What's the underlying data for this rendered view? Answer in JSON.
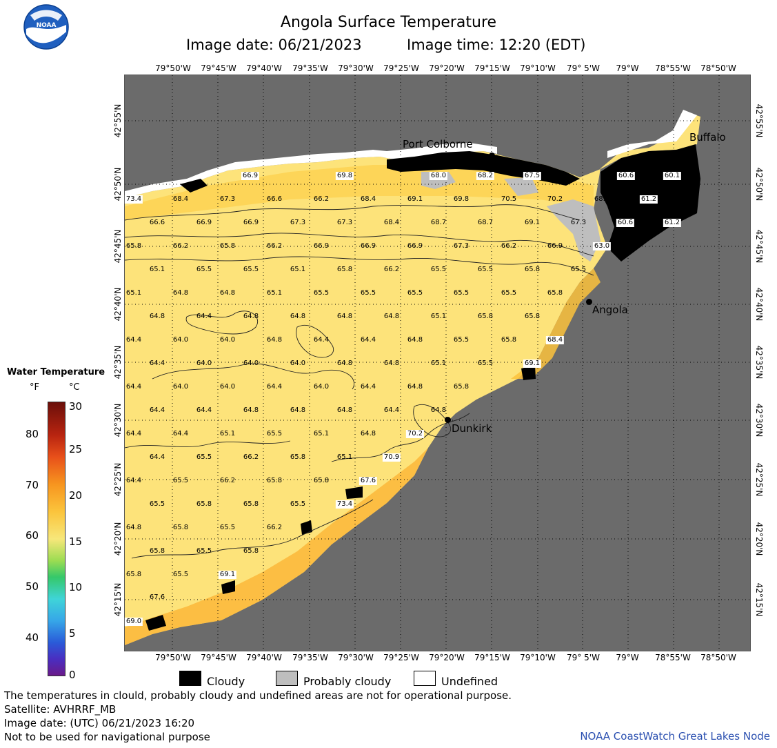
{
  "header": {
    "title": "Angola Surface Temperature",
    "image_date": "Image date: 06/21/2023",
    "image_time": "Image time: 12:20 (EDT)"
  },
  "logo": {
    "text": "NOAA"
  },
  "lon_labels": [
    "79°50'W",
    "79°45'W",
    "79°40'W",
    "79°35'W",
    "79°30'W",
    "79°25'W",
    "79°20'W",
    "79°15'W",
    "79°10'W",
    "79° 5'W",
    "79°W",
    "78°55'W",
    "78°50'W"
  ],
  "lat_labels": [
    "42°55'N",
    "42°50'N",
    "42°45'N",
    "42°40'N",
    "42°35'N",
    "42°30'N",
    "42°25'N",
    "42°20'N",
    "42°15'N"
  ],
  "cities": {
    "port_colborne": "Port Colborne",
    "buffalo": "Buffalo",
    "angola": "Angola",
    "dunkirk": "Dunkirk"
  },
  "temperatures": [
    {
      "v": "66.9",
      "b": true
    },
    {
      "v": "69.8",
      "b": true
    },
    {
      "v": "68.0",
      "b": true
    },
    {
      "v": "68.2",
      "b": true
    },
    {
      "v": "67.5",
      "b": true
    },
    {
      "v": "60.6",
      "b": true
    },
    {
      "v": "60.1",
      "b": true
    },
    {
      "v": "73.4",
      "b": true
    },
    {
      "v": "68.4",
      "b": false
    },
    {
      "v": "67.3",
      "b": false
    },
    {
      "v": "66.6",
      "b": false
    },
    {
      "v": "66.2",
      "b": false
    },
    {
      "v": "68.4",
      "b": false
    },
    {
      "v": "69.1",
      "b": false
    },
    {
      "v": "69.8",
      "b": false
    },
    {
      "v": "70.5",
      "b": false
    },
    {
      "v": "70.2",
      "b": false
    },
    {
      "v": "68.7",
      "b": false
    },
    {
      "v": "61.2",
      "b": true
    },
    {
      "v": "66.6",
      "b": false
    },
    {
      "v": "66.9",
      "b": false
    },
    {
      "v": "66.9",
      "b": false
    },
    {
      "v": "67.3",
      "b": false
    },
    {
      "v": "67.3",
      "b": false
    },
    {
      "v": "68.4",
      "b": false
    },
    {
      "v": "68.7",
      "b": false
    },
    {
      "v": "68.7",
      "b": false
    },
    {
      "v": "69.1",
      "b": false
    },
    {
      "v": "67.3",
      "b": false
    },
    {
      "v": "60.6",
      "b": true
    },
    {
      "v": "61.2",
      "b": true
    },
    {
      "v": "65.8",
      "b": false
    },
    {
      "v": "66.2",
      "b": false
    },
    {
      "v": "65.8",
      "b": false
    },
    {
      "v": "66.2",
      "b": false
    },
    {
      "v": "66.9",
      "b": false
    },
    {
      "v": "66.9",
      "b": false
    },
    {
      "v": "66.9",
      "b": false
    },
    {
      "v": "67.3",
      "b": false
    },
    {
      "v": "66.2",
      "b": false
    },
    {
      "v": "66.9",
      "b": false
    },
    {
      "v": "63.0",
      "b": true
    },
    {
      "v": "65.1",
      "b": false
    },
    {
      "v": "65.5",
      "b": false
    },
    {
      "v": "65.5",
      "b": false
    },
    {
      "v": "65.1",
      "b": false
    },
    {
      "v": "65.8",
      "b": false
    },
    {
      "v": "66.2",
      "b": false
    },
    {
      "v": "65.5",
      "b": false
    },
    {
      "v": "65.5",
      "b": false
    },
    {
      "v": "65.8",
      "b": false
    },
    {
      "v": "65.5",
      "b": false
    },
    {
      "v": "65.1",
      "b": false
    },
    {
      "v": "64.8",
      "b": false
    },
    {
      "v": "64.8",
      "b": false
    },
    {
      "v": "65.1",
      "b": false
    },
    {
      "v": "65.5",
      "b": false
    },
    {
      "v": "65.5",
      "b": false
    },
    {
      "v": "65.5",
      "b": false
    },
    {
      "v": "65.5",
      "b": false
    },
    {
      "v": "65.5",
      "b": false
    },
    {
      "v": "65.8",
      "b": false
    },
    {
      "v": "64.8",
      "b": false
    },
    {
      "v": "64.4",
      "b": false
    },
    {
      "v": "64.8",
      "b": false
    },
    {
      "v": "64.8",
      "b": false
    },
    {
      "v": "64.8",
      "b": false
    },
    {
      "v": "64.8",
      "b": false
    },
    {
      "v": "65.1",
      "b": false
    },
    {
      "v": "65.8",
      "b": false
    },
    {
      "v": "65.8",
      "b": false
    },
    {
      "v": "64.4",
      "b": false
    },
    {
      "v": "64.0",
      "b": false
    },
    {
      "v": "64.0",
      "b": false
    },
    {
      "v": "64.8",
      "b": false
    },
    {
      "v": "64.4",
      "b": false
    },
    {
      "v": "64.4",
      "b": false
    },
    {
      "v": "64.8",
      "b": false
    },
    {
      "v": "65.5",
      "b": false
    },
    {
      "v": "65.8",
      "b": false
    },
    {
      "v": "68.4",
      "b": true
    },
    {
      "v": "64.4",
      "b": false
    },
    {
      "v": "64.0",
      "b": false
    },
    {
      "v": "64.0",
      "b": false
    },
    {
      "v": "64.0",
      "b": false
    },
    {
      "v": "64.8",
      "b": false
    },
    {
      "v": "64.8",
      "b": false
    },
    {
      "v": "65.1",
      "b": false
    },
    {
      "v": "65.5",
      "b": false
    },
    {
      "v": "69.1",
      "b": true
    },
    {
      "v": "64.4",
      "b": false
    },
    {
      "v": "64.0",
      "b": false
    },
    {
      "v": "64.0",
      "b": false
    },
    {
      "v": "64.4",
      "b": false
    },
    {
      "v": "64.0",
      "b": false
    },
    {
      "v": "64.4",
      "b": false
    },
    {
      "v": "64.8",
      "b": false
    },
    {
      "v": "65.8",
      "b": false
    },
    {
      "v": "64.4",
      "b": false
    },
    {
      "v": "64.4",
      "b": false
    },
    {
      "v": "64.8",
      "b": false
    },
    {
      "v": "64.8",
      "b": false
    },
    {
      "v": "64.8",
      "b": false
    },
    {
      "v": "64.4",
      "b": false
    },
    {
      "v": "64.8",
      "b": false
    },
    {
      "v": "64.4",
      "b": false
    },
    {
      "v": "64.4",
      "b": false
    },
    {
      "v": "65.1",
      "b": false
    },
    {
      "v": "65.5",
      "b": false
    },
    {
      "v": "65.1",
      "b": false
    },
    {
      "v": "64.8",
      "b": false
    },
    {
      "v": "70.2",
      "b": true
    },
    {
      "v": "64.4",
      "b": false
    },
    {
      "v": "65.5",
      "b": false
    },
    {
      "v": "66.2",
      "b": false
    },
    {
      "v": "65.8",
      "b": false
    },
    {
      "v": "65.1",
      "b": false
    },
    {
      "v": "70.9",
      "b": true
    },
    {
      "v": "64.4",
      "b": false
    },
    {
      "v": "65.5",
      "b": false
    },
    {
      "v": "66.2",
      "b": false
    },
    {
      "v": "65.8",
      "b": false
    },
    {
      "v": "65.8",
      "b": false
    },
    {
      "v": "67.6",
      "b": true
    },
    {
      "v": "65.5",
      "b": false
    },
    {
      "v": "65.8",
      "b": false
    },
    {
      "v": "65.8",
      "b": false
    },
    {
      "v": "65.5",
      "b": false
    },
    {
      "v": "73.4",
      "b": true
    },
    {
      "v": "64.8",
      "b": false
    },
    {
      "v": "65.8",
      "b": false
    },
    {
      "v": "65.5",
      "b": false
    },
    {
      "v": "66.2",
      "b": false
    },
    {
      "v": "65.8",
      "b": false
    },
    {
      "v": "65.5",
      "b": false
    },
    {
      "v": "65.8",
      "b": false
    },
    {
      "v": "65.8",
      "b": false
    },
    {
      "v": "65.5",
      "b": false
    },
    {
      "v": "69.1",
      "b": true
    },
    {
      "v": "67.6",
      "b": false
    },
    {
      "v": "69.0",
      "b": true
    }
  ],
  "legend": {
    "title": "Water Temperature",
    "unit_f": "°F",
    "unit_c": "°C",
    "f_ticks": [
      "80",
      "70",
      "60",
      "50",
      "40"
    ],
    "c_ticks": [
      "30",
      "25",
      "20",
      "15",
      "10",
      "5",
      "0"
    ],
    "cloudy": "Cloudy",
    "probably_cloudy": "Probably cloudy",
    "undefined": "Undefined"
  },
  "colors": {
    "land": "#6b6b6b",
    "water_warm": "#fcd14d",
    "water_cool": "#fde87a",
    "cloud": "#000000",
    "probably_cloudy": "#bebebe",
    "undefined": "#ffffff"
  },
  "footer": {
    "disclaimer": "The temperatures in clould, probably cloudy and undefined areas are not for operational purpose.",
    "satellite": "Satellite: AVHRRF_MB",
    "utc_date": "Image date: (UTC) 06/21/2023  16:20",
    "nav_warning": "Not to be used for navigational purpose",
    "credit": "NOAA CoastWatch Great Lakes Node"
  }
}
